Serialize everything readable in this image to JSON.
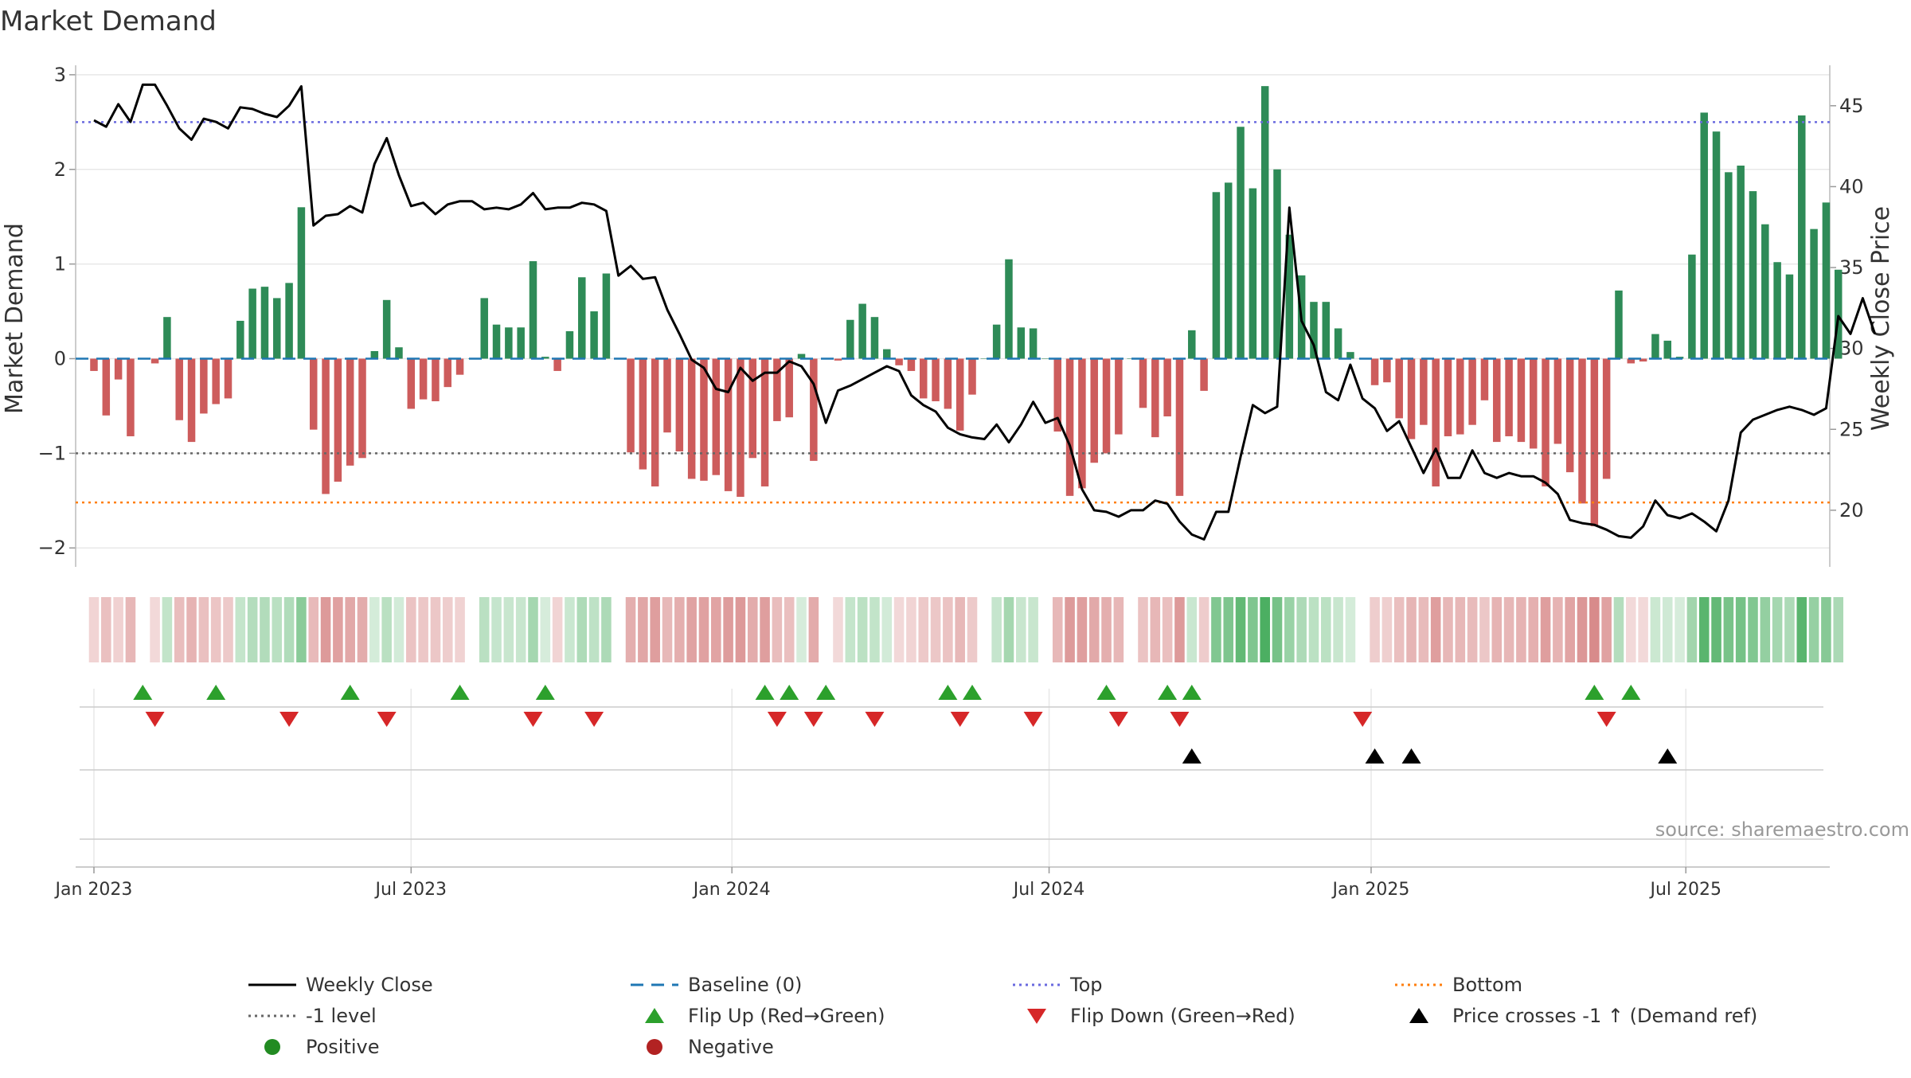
{
  "chart_data": {
    "type": "bar",
    "title": "Market Demand",
    "ylabel_left": "Market Demand",
    "ylabel_right": "Weekly Close Price",
    "ylim_left": [
      -2.2,
      3.1
    ],
    "ylim_right": [
      16.5,
      47.5
    ],
    "yticks_left": [
      -2,
      -1,
      0,
      1,
      2,
      3
    ],
    "yticks_left_labels": [
      "−2",
      "−1",
      "0",
      "1",
      "2",
      "3"
    ],
    "yticks_right": [
      20,
      25,
      30,
      35,
      40,
      45
    ],
    "x_start_week": -1.5,
    "x_end_week": 142.3,
    "xticks": [
      {
        "week": 0,
        "label": "Jan 2023"
      },
      {
        "week": 26,
        "label": "Jul 2023"
      },
      {
        "week": 52.3,
        "label": "Jan 2024"
      },
      {
        "week": 78.3,
        "label": "Jul 2024"
      },
      {
        "week": 104.7,
        "label": "Jan 2025"
      },
      {
        "week": 130.5,
        "label": "Jul 2025"
      }
    ],
    "reference_lines": {
      "top": 2.5,
      "bottom": -1.52,
      "level": -1,
      "baseline": 0
    },
    "demand": [
      -0.13,
      -0.6,
      -0.22,
      -0.82,
      0,
      -0.05,
      0.44,
      -0.65,
      -0.88,
      -0.58,
      -0.48,
      -0.42,
      0.4,
      0.74,
      0.76,
      0.64,
      0.8,
      1.6,
      -0.75,
      -1.43,
      -1.3,
      -1.13,
      -1.05,
      0.08,
      0.62,
      0.12,
      -0.53,
      -0.43,
      -0.45,
      -0.3,
      -0.17,
      0,
      0.64,
      0.36,
      0.33,
      0.33,
      1.03,
      0.02,
      -0.13,
      0.29,
      0.86,
      0.5,
      0.9,
      0,
      -0.99,
      -1.17,
      -1.35,
      -0.78,
      -0.98,
      -1.27,
      -1.29,
      -1.23,
      -1.4,
      -1.46,
      -1.05,
      -1.35,
      -0.66,
      -0.62,
      0.05,
      -1.08,
      0,
      -0.02,
      0.41,
      0.58,
      0.44,
      0.1,
      -0.07,
      -0.13,
      -0.42,
      -0.45,
      -0.53,
      -0.76,
      -0.38,
      0,
      0.36,
      1.05,
      0.33,
      0.32,
      0,
      -0.77,
      -1.45,
      -1.37,
      -1.1,
      -1.0,
      -0.8,
      0,
      -0.52,
      -0.83,
      -0.61,
      -1.45,
      0.3,
      -0.34,
      1.76,
      1.86,
      2.45,
      1.8,
      2.88,
      2.0,
      1.31,
      0.88,
      0.6,
      0.6,
      0.32,
      0.07,
      0,
      -0.28,
      -0.25,
      -0.63,
      -0.85,
      -0.7,
      -1.35,
      -0.82,
      -0.8,
      -0.7,
      -0.44,
      -0.88,
      -0.82,
      -0.88,
      -0.95,
      -1.35,
      -0.9,
      -1.2,
      -1.53,
      -1.77,
      -1.27,
      0.72,
      -0.05,
      -0.03,
      0.26,
      0.19,
      0.02,
      1.1,
      2.6,
      2.4,
      1.97,
      2.04,
      1.77,
      1.42,
      1.02,
      0.89,
      2.57,
      1.37,
      1.65,
      0.94
    ],
    "weekly_close": [
      44.1,
      43.7,
      45.1,
      44,
      46.3,
      46.3,
      45,
      43.6,
      42.9,
      44.2,
      44,
      43.6,
      44.9,
      44.8,
      44.5,
      44.3,
      45,
      46.2,
      37.6,
      38.2,
      38.3,
      38.8,
      38.4,
      41.4,
      43,
      40.7,
      38.8,
      39,
      38.3,
      38.9,
      39.1,
      39.1,
      38.6,
      38.7,
      38.6,
      38.9,
      39.6,
      38.6,
      38.7,
      38.7,
      39,
      38.9,
      38.5,
      34.5,
      35.1,
      34.3,
      34.4,
      32.4,
      30.9,
      29.3,
      28.8,
      27.5,
      27.3,
      28.8,
      28,
      28.5,
      28.5,
      29.2,
      28.9,
      27.8,
      25.4,
      27.4,
      27.7,
      28.1,
      28.5,
      28.9,
      28.6,
      27.1,
      26.5,
      26.1,
      25.1,
      24.7,
      24.5,
      24.4,
      25.3,
      24.2,
      25.3,
      26.7,
      25.4,
      25.7,
      24,
      21.3,
      20,
      19.9,
      19.6,
      20,
      20,
      20.6,
      20.4,
      19.3,
      18.5,
      18.2,
      19.9,
      19.9,
      23.3,
      26.5,
      26,
      26.4,
      38.7,
      31.7,
      30.2,
      27.3,
      26.8,
      29,
      26.9,
      26.3,
      24.9,
      25.5,
      23.9,
      22.3,
      23.8,
      22,
      22,
      23.7,
      22.3,
      22,
      22.3,
      22.1,
      22.1,
      21.7,
      21,
      19.4,
      19.2,
      19.1,
      18.8,
      18.4,
      18.3,
      19,
      20.6,
      19.7,
      19.5,
      19.8,
      19.3,
      18.7,
      20.6,
      24.8,
      25.6,
      25.9,
      26.2,
      26.4,
      26.2,
      25.9,
      26.3,
      32,
      30.9,
      33.1,
      30.9
    ],
    "markers": {
      "flip_up_weeks": [
        4,
        10,
        21,
        30,
        37,
        55,
        57,
        60,
        70,
        72,
        83,
        88,
        90,
        123,
        126
      ],
      "flip_down_weeks": [
        5,
        16,
        24,
        36,
        41,
        56,
        59,
        64,
        71,
        77,
        84,
        89,
        104,
        124
      ],
      "price_cross_weeks": [
        90,
        105,
        108,
        129
      ]
    },
    "source_text": "source: sharemaestro.com",
    "legend": [
      {
        "key": "weekly_close",
        "label": "Weekly Close",
        "kind": "solid-line",
        "color": "#000000"
      },
      {
        "key": "baseline",
        "label": "Baseline (0)",
        "kind": "long-dash-line",
        "color": "#1f77b4"
      },
      {
        "key": "top",
        "label": "Top",
        "kind": "dotted-line",
        "color": "#6a6adf"
      },
      {
        "key": "bottom",
        "label": "Bottom",
        "kind": "dotted-line",
        "color": "#ff7f0e"
      },
      {
        "key": "level",
        "label": "-1 level",
        "kind": "dotted-line",
        "color": "#666666"
      },
      {
        "key": "flip_up",
        "label": "Flip Up (Red→Green)",
        "kind": "triangle-up",
        "color": "#2ca02c"
      },
      {
        "key": "flip_down",
        "label": "Flip Down (Green→Red)",
        "kind": "triangle-down",
        "color": "#d62728"
      },
      {
        "key": "price_cross",
        "label": "Price crosses -1 ↑ (Demand ref)",
        "kind": "triangle-up",
        "color": "#000000"
      },
      {
        "key": "positive",
        "label": "Positive",
        "kind": "circle",
        "color": "#228b22"
      },
      {
        "key": "negative",
        "label": "Negative",
        "kind": "circle",
        "color": "#b22222"
      }
    ],
    "colors": {
      "positive_bar": "#2e8b57",
      "negative_bar": "#cd5c5c",
      "price_line": "#000000",
      "grid": "#e8e8e8",
      "strip_positive": "#4caf62",
      "strip_negative": "#c85a5a"
    }
  }
}
